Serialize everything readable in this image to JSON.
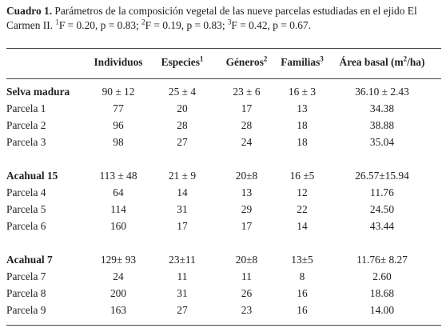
{
  "caption": {
    "label": "Cuadro 1.",
    "text_a": " Parámetros de la composición vegetal de las nueve parcelas estudiadas en el ejido El Carmen II. ",
    "sup1": "1",
    "stat1": "F = 0.20, p = 0.83; ",
    "sup2": "2",
    "stat2": "F = 0.19, p = 0.83; ",
    "sup3": "3",
    "stat3": "F = 0.42, p = 0.67."
  },
  "header": {
    "col0": "",
    "col1": "Individuos",
    "col2_text": "Especies",
    "col2_sup": "1",
    "col3_text": "Géneros",
    "col3_sup": "2",
    "col4_text": "Familias",
    "col4_sup": "3",
    "col5_text": "Área basal (m",
    "col5_sup": "2",
    "col5_tail": "/ha)"
  },
  "rows": [
    {
      "cells": [
        "Selva madura",
        "90 ± 12",
        "25 ± 4",
        "23 ± 6",
        "16 ± 3",
        "36.10 ± 2.43"
      ]
    },
    {
      "cells": [
        "Parcela 1",
        "77",
        "20",
        "17",
        "13",
        "34.38"
      ]
    },
    {
      "cells": [
        "Parcela 2",
        "96",
        "28",
        "28",
        "18",
        "38.88"
      ]
    },
    {
      "cells": [
        "Parcela 3",
        "98",
        "27",
        "24",
        "18",
        "35.04"
      ]
    },
    {
      "cells": [
        "Acahual 15",
        "113 ± 48",
        "21 ± 9",
        "20±8",
        "16 ±5",
        "26.57±15.94"
      ]
    },
    {
      "cells": [
        "Parcela 4",
        "64",
        "14",
        "13",
        "12",
        "11.76"
      ]
    },
    {
      "cells": [
        "Parcela 5",
        "114",
        "31",
        "29",
        "22",
        "24.50"
      ]
    },
    {
      "cells": [
        "Parcela 6",
        "160",
        "17",
        "17",
        "14",
        "43.44"
      ]
    },
    {
      "cells": [
        "Acahual 7",
        "129± 93",
        "23±11",
        "20±8",
        "13±5",
        "11.76± 8.27"
      ]
    },
    {
      "cells": [
        "Parcela 7",
        "24",
        "11",
        "11",
        "8",
        "2.60"
      ]
    },
    {
      "cells": [
        "Parcela 8",
        "200",
        "31",
        "26",
        "16",
        "18.68"
      ]
    },
    {
      "cells": [
        "Parcela 9",
        "163",
        "27",
        "23",
        "16",
        "14.00"
      ]
    }
  ]
}
